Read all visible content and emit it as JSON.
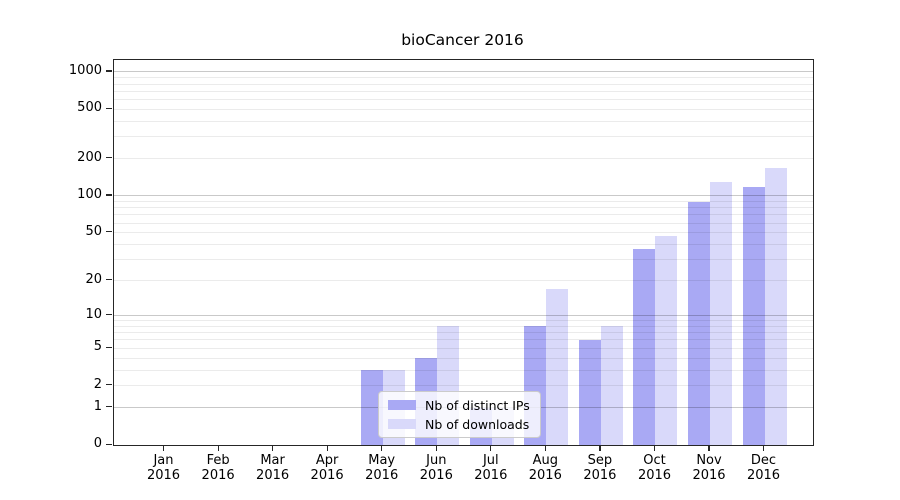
{
  "title": "bioCancer 2016",
  "colors": {
    "ips": "#a9a9f4",
    "downloads": "#d9d9fa",
    "major_grid": "rgba(0,0,0,0.21)",
    "minor_grid": "rgba(0,0,0,0.08)",
    "spine": "#262626",
    "legend_border": "#cbcbcb",
    "legend_bg": "rgba(255,255,255,0.8)"
  },
  "legend": {
    "items": [
      {
        "key": "ips",
        "label": "Nb of distinct IPs"
      },
      {
        "key": "downloads",
        "label": "Nb of downloads"
      }
    ]
  },
  "chart_data": {
    "type": "bar",
    "title": "bioCancer 2016",
    "categories": [
      "Jan 2016",
      "Feb 2016",
      "Mar 2016",
      "Apr 2016",
      "May 2016",
      "Jun 2016",
      "Jul 2016",
      "Aug 2016",
      "Sep 2016",
      "Oct 2016",
      "Nov 2016",
      "Dec 2016"
    ],
    "series": [
      {
        "key": "ips",
        "name": "Nb of distinct IPs",
        "values": [
          0,
          0,
          0,
          0,
          3,
          4,
          1,
          8,
          6,
          37,
          89,
          117
        ]
      },
      {
        "key": "downloads",
        "name": "Nb of downloads",
        "values": [
          0,
          0,
          0,
          0,
          3,
          8,
          1,
          17,
          8,
          47,
          129,
          167
        ]
      }
    ],
    "xlabel": "",
    "ylabel": "",
    "yscale": "log1p",
    "ylim": [
      0,
      1280
    ],
    "yticks": [
      0,
      1,
      2,
      5,
      10,
      20,
      50,
      100,
      200,
      500,
      1000
    ],
    "grid": "on",
    "legend_position": "lower center"
  }
}
